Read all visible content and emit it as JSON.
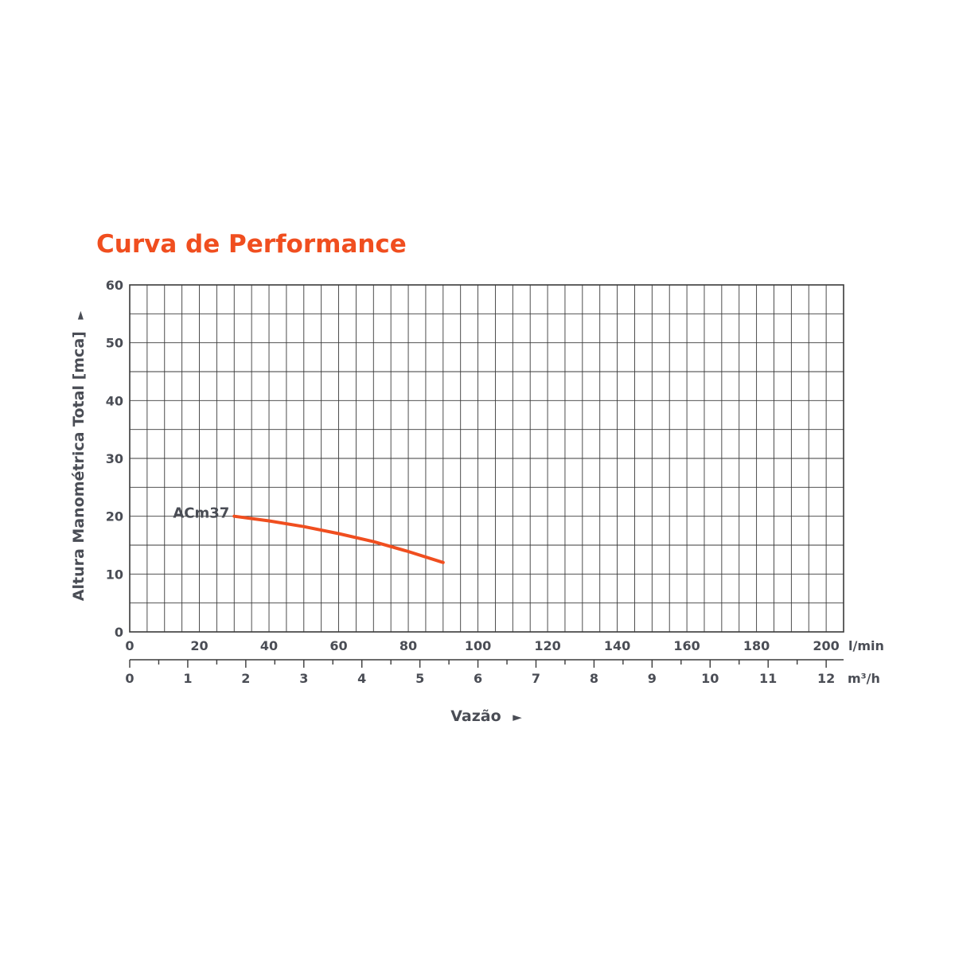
{
  "title": "Curva de Performance",
  "colors": {
    "accent": "#f04e1f",
    "text": "#4a4d55",
    "grid": "#3a3a3a"
  },
  "chart_data": {
    "type": "line",
    "title": "Curva de Performance",
    "ylabel": "Altura Manométrica Total [mca]",
    "ylabel_arrow": "►",
    "xlabel": "Vazão",
    "xlabel_arrow": "►",
    "ylim": [
      0,
      60
    ],
    "xlim": [
      0,
      205
    ],
    "y_ticks": [
      "0",
      "10",
      "20",
      "30",
      "40",
      "50",
      "60"
    ],
    "x_axis_primary": {
      "unit": "l/min",
      "ticks": [
        "0",
        "20",
        "40",
        "60",
        "80",
        "100",
        "120",
        "140",
        "160",
        "180",
        "200"
      ]
    },
    "x_axis_secondary": {
      "unit": "m³/h",
      "ticks": [
        "0",
        "1",
        "2",
        "3",
        "4",
        "5",
        "6",
        "7",
        "8",
        "9",
        "10",
        "11",
        "12"
      ]
    },
    "grid": true,
    "series": [
      {
        "name": "ACm37",
        "x": [
          30,
          40,
          50,
          60,
          70,
          80,
          90
        ],
        "y": [
          20,
          19.2,
          18.2,
          17.0,
          15.6,
          13.9,
          12.0
        ]
      }
    ]
  }
}
